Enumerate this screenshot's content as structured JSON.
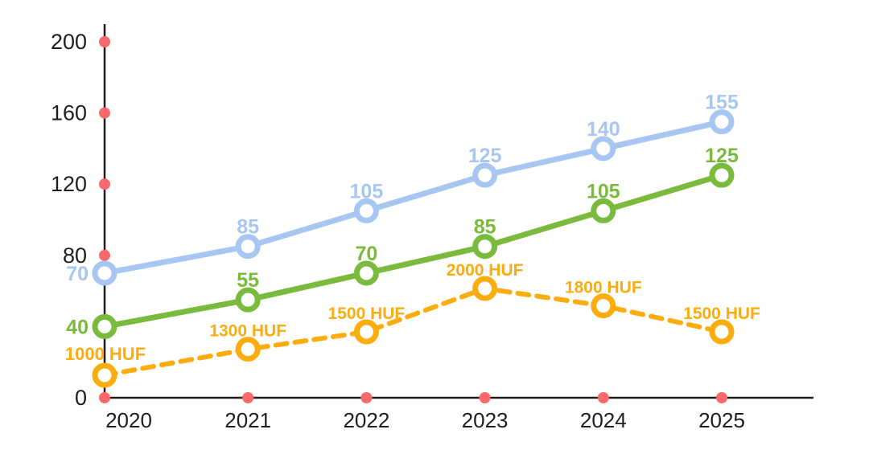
{
  "chart_data": {
    "type": "line",
    "title": "",
    "x_labels": [
      "2020",
      "2021",
      "2022",
      "2023",
      "2024",
      "2025"
    ],
    "y_axis": {
      "range": [
        0,
        200
      ],
      "tick_step": 40,
      "visible_tick_labels": [
        "200",
        "160",
        "120",
        "80",
        "0"
      ],
      "unlabeled_tick_values": [
        40
      ],
      "grid": false
    },
    "secondary_axis": {
      "unit": "HUF",
      "axis_line_visible": false,
      "approx_range": [
        1000,
        2000
      ]
    },
    "legend": false,
    "series": [
      {
        "name": "blue-line",
        "line_style": "solid",
        "color": "#a8c6f2",
        "axis": "primary",
        "values": [
          70,
          85,
          105,
          125,
          140,
          155
        ],
        "point_labels": [
          "70",
          "85",
          "105",
          "125",
          "140",
          "155"
        ],
        "first_label_position": "left-of-point"
      },
      {
        "name": "green-line",
        "line_style": "solid",
        "color": "#7abb3e",
        "axis": "primary",
        "values": [
          40,
          55,
          70,
          85,
          105,
          125
        ],
        "point_labels": [
          "40",
          "55",
          "70",
          "85",
          "105",
          "125"
        ],
        "first_label_position": "left-of-point"
      },
      {
        "name": "orange-dashed-line",
        "line_style": "dashed",
        "color": "#fbad0f",
        "axis": "secondary",
        "values": [
          1000,
          1300,
          1500,
          2000,
          1800,
          1500
        ],
        "point_labels": [
          "1000 HUF",
          "1300 HUF",
          "1500 HUF",
          "2000 HUF",
          "1800 HUF",
          "1500 HUF"
        ],
        "first_label_position": "above-straddling-axis"
      }
    ],
    "colors": {
      "tick_dot": "#f9696b",
      "axis_line": "#1e1e1e",
      "tick_label_text": "#1e1e1e",
      "background": "#ffffff",
      "marker_fill": "#ffffff"
    }
  }
}
